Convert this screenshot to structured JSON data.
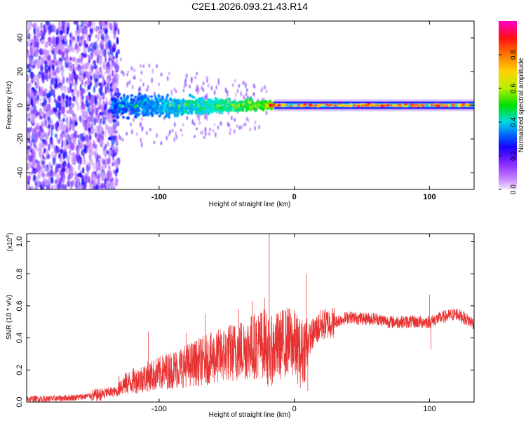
{
  "figure": {
    "title": "C2E1.2026.093.21.43.R14"
  },
  "chart_data": [
    {
      "type": "heatmap",
      "name": "spectrogram",
      "xlabel": "Height of straight line (km)",
      "ylabel": "Frequency (Hz)",
      "xlim": [
        -198,
        133
      ],
      "ylim": [
        -50,
        50
      ],
      "x_ticks": [
        -100,
        0,
        100
      ],
      "x_tick_labels": [
        "-100",
        "0",
        "100"
      ],
      "y_ticks": [
        40,
        20,
        0,
        -20,
        -40
      ],
      "y_tick_labels": [
        "40",
        "20",
        "0",
        "-20",
        "-40"
      ],
      "colorbar": {
        "label": "Normalized spectral amplitude",
        "range": [
          0.0,
          1.0
        ],
        "ticks": [
          0.0,
          0.2,
          0.4,
          0.6,
          0.8
        ],
        "tick_labels": [
          "0.0",
          "0.2",
          "0.4",
          "0.6",
          "0.8"
        ],
        "colors": [
          "#f4e8ff",
          "#9d44ff",
          "#1a00ff",
          "#0076ff",
          "#00e6e6",
          "#00e000",
          "#c8f000",
          "#ffd200",
          "#ff7800",
          "#ff0000",
          "#ff00c8"
        ]
      },
      "regions": [
        {
          "x_from": -198,
          "x_to": -140,
          "freq_spread": 50,
          "amplitude": 0.18,
          "description_note": "broadband noise"
        },
        {
          "x_from": -140,
          "x_to": -20,
          "freq_spread_start": 10,
          "freq_spread_end": 4,
          "amplitude_start": 0.25,
          "amplitude_end": 0.6
        },
        {
          "x_from": -20,
          "x_to": 133,
          "freq_spread": 1.5,
          "amplitude": 0.85,
          "center_frequency": 0
        }
      ]
    },
    {
      "type": "line",
      "name": "snr",
      "xlabel": "Height of straight line (km)",
      "ylabel": "SNR (10 * v/v)",
      "scale_label": "(x10",
      "scale_exponent": "4",
      "scale_close": ")",
      "xlim": [
        -198,
        133
      ],
      "ylim": [
        0,
        1.05
      ],
      "x_ticks": [
        -100,
        0,
        100
      ],
      "x_tick_labels": [
        "-100",
        "0",
        "100"
      ],
      "y_ticks": [
        0.0,
        0.2,
        0.4,
        0.6,
        0.8,
        1.0
      ],
      "y_tick_labels": [
        "0.0",
        "0.2",
        "0.4",
        "0.6",
        "0.8",
        "1.0"
      ],
      "color": "#e83232",
      "envelope_x": [
        -198,
        -180,
        -160,
        -150,
        -140,
        -130,
        -120,
        -110,
        -100,
        -90,
        -80,
        -70,
        -60,
        -50,
        -40,
        -30,
        -20,
        -15,
        -10,
        -5,
        0,
        5,
        10,
        15,
        20,
        30,
        40,
        50,
        60,
        70,
        80,
        90,
        95,
        100,
        110,
        120,
        133
      ],
      "envelope_y": [
        0.02,
        0.02,
        0.03,
        0.04,
        0.05,
        0.07,
        0.1,
        0.12,
        0.14,
        0.16,
        0.18,
        0.2,
        0.22,
        0.24,
        0.26,
        0.28,
        0.3,
        0.33,
        0.36,
        0.38,
        0.36,
        0.3,
        0.38,
        0.44,
        0.48,
        0.5,
        0.53,
        0.52,
        0.52,
        0.5,
        0.5,
        0.5,
        0.5,
        0.5,
        0.53,
        0.55,
        0.49
      ],
      "spikes": [
        {
          "x": -18.5,
          "y": 1.05
        },
        {
          "x": 9,
          "y": 0.8
        },
        {
          "x": 10,
          "y": 0.07
        },
        {
          "x": 100,
          "y": 0.67
        },
        {
          "x": 101,
          "y": 0.33
        },
        {
          "x": -108,
          "y": 0.44
        },
        {
          "x": -66,
          "y": 0.55
        },
        {
          "x": -41,
          "y": 0.58
        },
        {
          "x": -31,
          "y": 0.63
        },
        {
          "x": -22,
          "y": 0.65
        },
        {
          "x": -17,
          "y": 0.4
        },
        {
          "x": -4,
          "y": 0.55
        },
        {
          "x": 2,
          "y": 0.28
        },
        {
          "x": -80,
          "y": 0.43
        }
      ]
    }
  ]
}
